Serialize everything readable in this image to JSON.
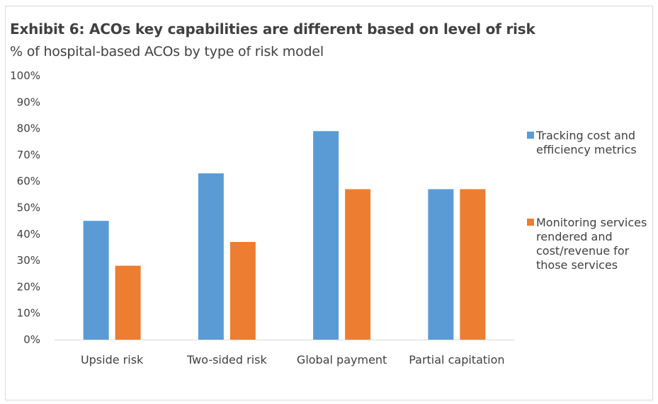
{
  "chart_data": {
    "type": "bar",
    "title": "Exhibit 6: ACOs key capabilities are different based on level of risk",
    "subtitle": "% of hospital-based ACOs by type of risk model",
    "categories": [
      "Upside risk",
      "Two-sided risk",
      "Global payment",
      "Partial capitation"
    ],
    "series": [
      {
        "name": "Tracking cost and efficiency metrics",
        "color": "#5b9bd5",
        "values": [
          45,
          63,
          79,
          57
        ]
      },
      {
        "name": "Monitoring services rendered and cost/revenue for those services",
        "color": "#ed7d31",
        "values": [
          28,
          37,
          57,
          57
        ]
      }
    ],
    "y_ticks": [
      "0%",
      "10%",
      "20%",
      "30%",
      "40%",
      "50%",
      "60%",
      "70%",
      "80%",
      "90%",
      "100%"
    ],
    "ylim": [
      0,
      100
    ],
    "xlabel": "",
    "ylabel": "",
    "grid": false,
    "legend_position": "right"
  }
}
